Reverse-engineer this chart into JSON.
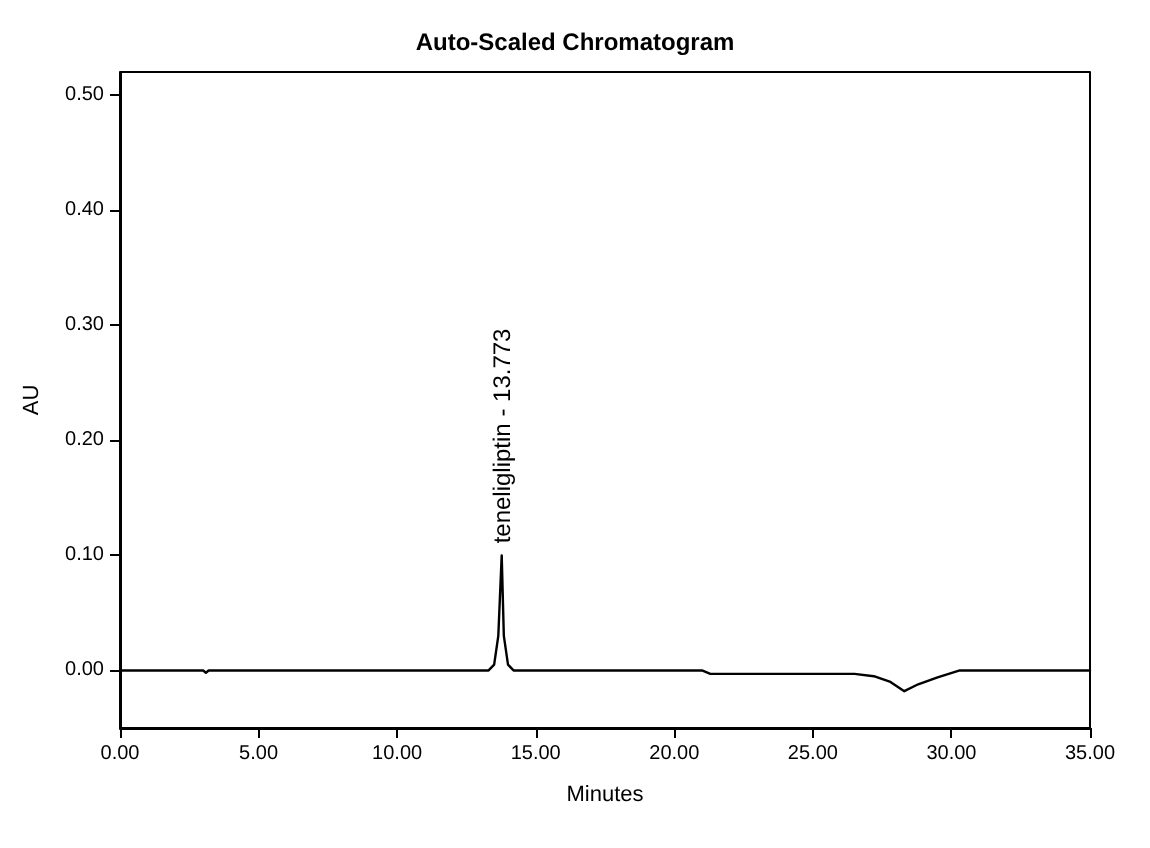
{
  "chart_data": {
    "type": "line",
    "title": "Auto-Scaled Chromatogram",
    "xlabel": "Minutes",
    "ylabel": "AU",
    "series": [
      {
        "color": "#000000",
        "x": [
          0,
          3,
          3.1,
          3.2,
          13.3,
          13.5,
          13.65,
          13.773,
          13.85,
          14.0,
          14.2,
          18,
          21,
          21.3,
          26.5,
          27.2,
          27.8,
          28.3,
          28.8,
          29.5,
          30.3,
          35
        ],
        "values": [
          0,
          0,
          -0.002,
          0,
          0,
          0.005,
          0.03,
          0.1,
          0.03,
          0.005,
          0,
          0,
          0,
          -0.003,
          -0.003,
          -0.005,
          -0.01,
          -0.018,
          -0.012,
          -0.006,
          0,
          0
        ]
      }
    ],
    "xlim": [
      0,
      35
    ],
    "xticks": [
      {
        "value": 0,
        "label": "0.00"
      },
      {
        "value": 5,
        "label": "5.00"
      },
      {
        "value": 10,
        "label": "10.00"
      },
      {
        "value": 15,
        "label": "15.00"
      },
      {
        "value": 20,
        "label": "20.00"
      },
      {
        "value": 25,
        "label": "25.00"
      },
      {
        "value": 30,
        "label": "30.00"
      },
      {
        "value": 35,
        "label": "35.00"
      }
    ],
    "ylim": [
      -0.05,
      0.52
    ],
    "yticks": [
      {
        "value": 0,
        "label": "0.00"
      },
      {
        "value": 0.1,
        "label": "0.10"
      },
      {
        "value": 0.2,
        "label": "0.20"
      },
      {
        "value": 0.3,
        "label": "0.30"
      },
      {
        "value": 0.4,
        "label": "0.40"
      },
      {
        "value": 0.5,
        "label": "0.50"
      }
    ],
    "annotations": [
      {
        "text": "teneligliptin - 13.773",
        "x": 13.773,
        "y": 0.1
      }
    ],
    "grid": false,
    "marker": "none",
    "line_style": "solid"
  }
}
